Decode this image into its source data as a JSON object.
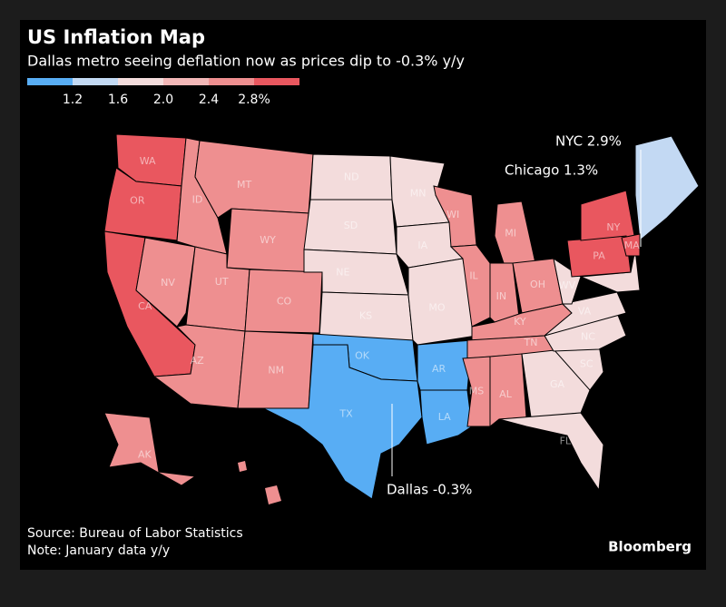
{
  "header": {
    "title": "US Inflation Map",
    "subtitle": "Dallas metro seeing deflation now as prices dip to -0.3% y/y"
  },
  "legend": {
    "colors": [
      "#58adf4",
      "#c3d9f3",
      "#f3dcdc",
      "#f2b7b7",
      "#ee8f90",
      "#e9575f"
    ],
    "labels": [
      "1.2",
      "1.6",
      "2.0",
      "2.4",
      "2.8%"
    ]
  },
  "states": [
    {
      "label": "WA",
      "color": "#e9575f"
    },
    {
      "label": "OR",
      "color": "#e9575f"
    },
    {
      "label": "CA",
      "color": "#e9575f"
    },
    {
      "label": "NV",
      "color": "#ee8f90"
    },
    {
      "label": "ID",
      "color": "#ee8f90"
    },
    {
      "label": "MT",
      "color": "#ee8f90"
    },
    {
      "label": "WY",
      "color": "#ee8f90"
    },
    {
      "label": "UT",
      "color": "#ee8f90"
    },
    {
      "label": "CO",
      "color": "#ee8f90"
    },
    {
      "label": "AZ",
      "color": "#ee8f90"
    },
    {
      "label": "NM",
      "color": "#ee8f90"
    },
    {
      "label": "ND",
      "color": "#f3dcdc"
    },
    {
      "label": "SD",
      "color": "#f3dcdc"
    },
    {
      "label": "NE",
      "color": "#f3dcdc"
    },
    {
      "label": "KS",
      "color": "#f3dcdc"
    },
    {
      "label": "OK",
      "color": "#58adf4"
    },
    {
      "label": "TX",
      "color": "#58adf4"
    },
    {
      "label": "MN",
      "color": "#f3dcdc"
    },
    {
      "label": "IA",
      "color": "#f3dcdc"
    },
    {
      "label": "MO",
      "color": "#f3dcdc"
    },
    {
      "label": "AR",
      "color": "#58adf4"
    },
    {
      "label": "LA",
      "color": "#58adf4"
    },
    {
      "label": "WI",
      "color": "#ee8f90"
    },
    {
      "label": "IL",
      "color": "#ee8f90"
    },
    {
      "label": "MI",
      "color": "#ee8f90"
    },
    {
      "label": "IN",
      "color": "#ee8f90"
    },
    {
      "label": "OH",
      "color": "#ee8f90"
    },
    {
      "label": "KY",
      "color": "#ee8f90"
    },
    {
      "label": "TN",
      "color": "#ee8f90"
    },
    {
      "label": "MS",
      "color": "#ee8f90"
    },
    {
      "label": "AL",
      "color": "#ee8f90"
    },
    {
      "label": "GA",
      "color": "#f3dcdc"
    },
    {
      "label": "FL",
      "color": "#f3dcdc"
    },
    {
      "label": "SC",
      "color": "#f3dcdc"
    },
    {
      "label": "NC",
      "color": "#f3dcdc"
    },
    {
      "label": "VA",
      "color": "#f3dcdc"
    },
    {
      "label": "WV",
      "color": "#f3dcdc"
    },
    {
      "label": "PA",
      "color": "#e9575f"
    },
    {
      "label": "NY",
      "color": "#e9575f"
    },
    {
      "label": "MA",
      "color": "#e9575f"
    },
    {
      "label": "AK",
      "color": "#ee8f90"
    }
  ],
  "annotations": [
    "NYC 2.9%",
    "Chicago 1.3%",
    "Dallas -0.3%"
  ],
  "footer": {
    "source": "Source: Bureau of Labor Statistics",
    "note": "Note: January data y/y",
    "brand": "Bloomberg"
  }
}
